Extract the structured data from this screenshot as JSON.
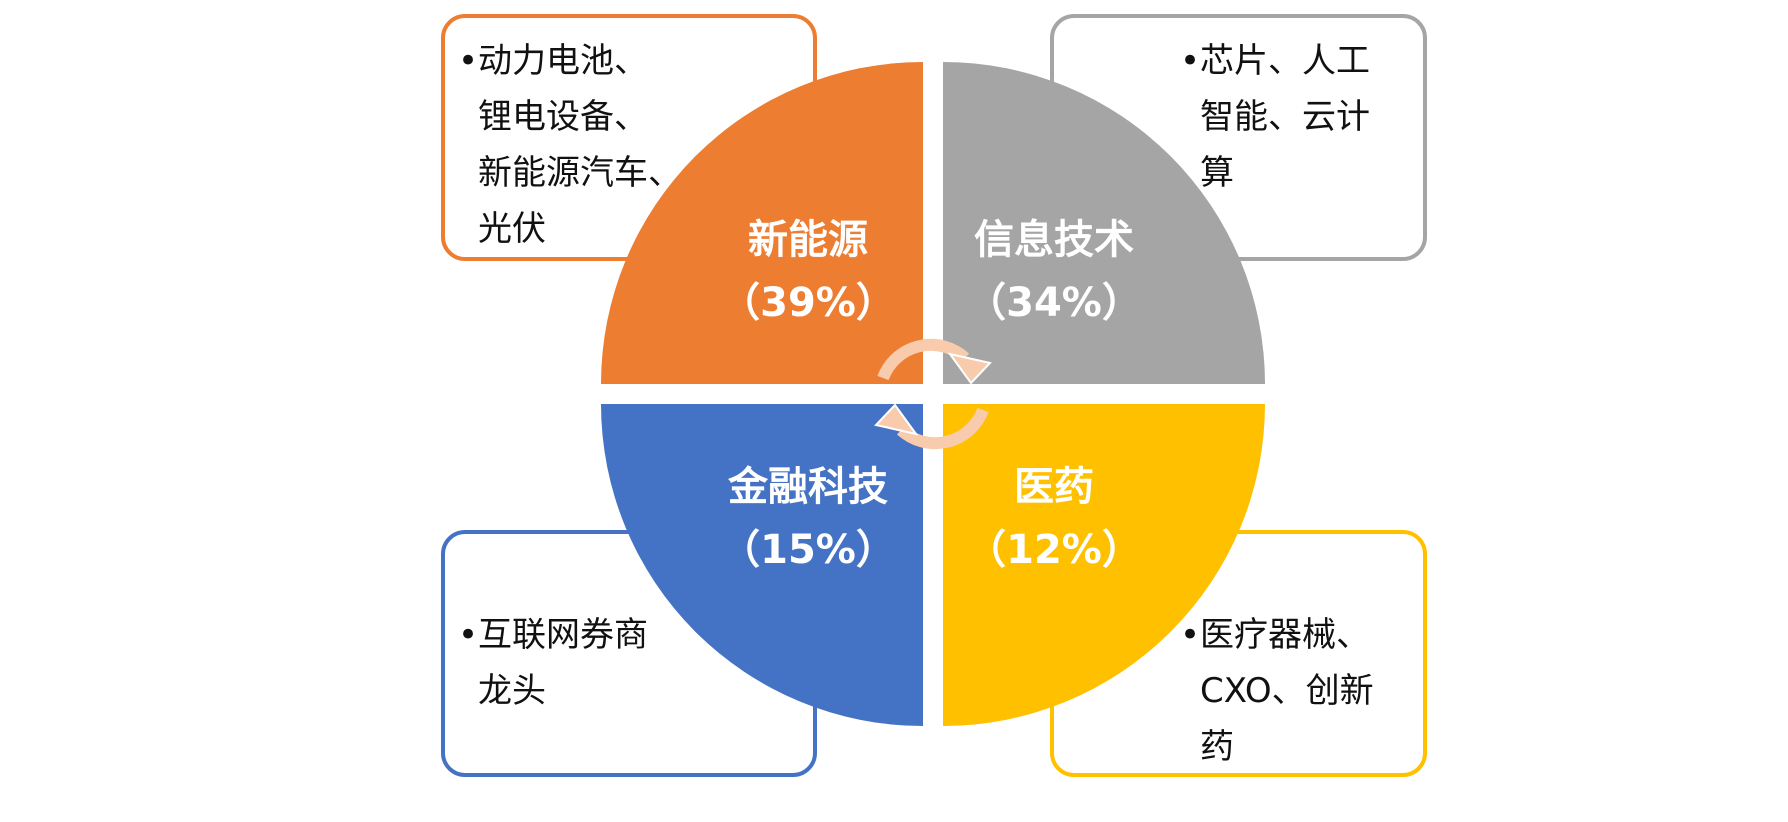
{
  "quadrants": [
    {
      "id": "new-energy",
      "label": "新能源",
      "share": "（39%）",
      "color": "#ED7D31",
      "details": [
        "动力电池、",
        "锂电设备、",
        "新能源汽车、",
        "光伏"
      ]
    },
    {
      "id": "info-tech",
      "label": "信息技术",
      "share": "（34%）",
      "color": "#A5A5A5",
      "details": [
        "芯片、人工",
        "智能、云计",
        "算"
      ]
    },
    {
      "id": "fintech",
      "label": "金融科技",
      "share": "（15%）",
      "color": "#4472C4",
      "details": [
        "互联网券商",
        "龙头"
      ]
    },
    {
      "id": "pharma",
      "label": "医药",
      "share": "（12%）",
      "color": "#FFC000",
      "details": [
        "医疗器械、",
        "CXO、创新",
        "药"
      ]
    }
  ],
  "bullet": "•",
  "cycle_arrow_color": "#F8CBAD"
}
